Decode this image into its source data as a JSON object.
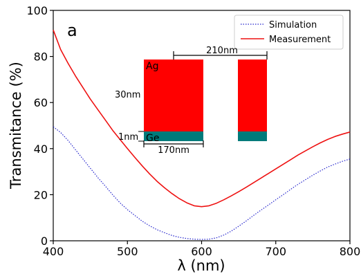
{
  "chart_data": {
    "type": "line",
    "panel_label": "a",
    "xlabel": "λ (nm)",
    "ylabel": "Transmitance (%)",
    "xlim": [
      400,
      800
    ],
    "ylim": [
      0,
      100
    ],
    "xticks": [
      400,
      500,
      600,
      700,
      800
    ],
    "yticks": [
      0,
      20,
      40,
      60,
      80,
      100
    ],
    "legend_position": "top-right",
    "series": [
      {
        "name": "Simulation",
        "color": "#2222cc",
        "style": "dotted",
        "x": [
          400,
          410,
          420,
          430,
          440,
          450,
          460,
          470,
          480,
          490,
          500,
          510,
          520,
          530,
          540,
          550,
          560,
          570,
          580,
          590,
          600,
          610,
          620,
          630,
          640,
          650,
          660,
          670,
          680,
          690,
          700,
          710,
          720,
          730,
          740,
          750,
          760,
          770,
          780,
          790,
          800
        ],
        "values": [
          49.5,
          47,
          43.5,
          39.5,
          35.5,
          31.5,
          27.5,
          23.8,
          20,
          16.5,
          13.5,
          11,
          8.5,
          6.5,
          4.8,
          3.5,
          2.3,
          1.5,
          1,
          0.7,
          0.6,
          0.7,
          1.3,
          2.5,
          4.2,
          6.3,
          8.6,
          11,
          13.3,
          15.5,
          17.8,
          20,
          22.3,
          24.5,
          26.5,
          28.5,
          30.3,
          32,
          33.3,
          34.5,
          35.5
        ]
      },
      {
        "name": "Measurement",
        "color": "#ee1111",
        "style": "solid",
        "x": [
          400,
          410,
          420,
          430,
          440,
          450,
          460,
          470,
          480,
          490,
          500,
          510,
          520,
          530,
          540,
          550,
          560,
          570,
          580,
          590,
          600,
          610,
          620,
          630,
          640,
          650,
          660,
          670,
          680,
          690,
          700,
          710,
          720,
          730,
          740,
          750,
          760,
          770,
          780,
          790,
          800
        ],
        "values": [
          91.5,
          83,
          77,
          71.5,
          66.5,
          61.5,
          57,
          52.5,
          48,
          44,
          40,
          36.2,
          32.5,
          29,
          25.8,
          23,
          20.5,
          18.3,
          16.5,
          15.2,
          14.8,
          15.2,
          16.3,
          17.8,
          19.5,
          21.3,
          23.2,
          25.2,
          27.2,
          29.2,
          31.2,
          33.2,
          35.2,
          37.2,
          39,
          40.8,
          42.5,
          44,
          45.3,
          46.3,
          47.2
        ]
      }
    ]
  },
  "inset": {
    "labels": {
      "top_material": "Ag",
      "bottom_material": "Ge",
      "period": "210nm",
      "ag_thickness": "30nm",
      "ge_thickness": "1nm",
      "width": "170nm"
    },
    "colors": {
      "ag": "#ff0000",
      "ge": "#007b7b"
    }
  }
}
